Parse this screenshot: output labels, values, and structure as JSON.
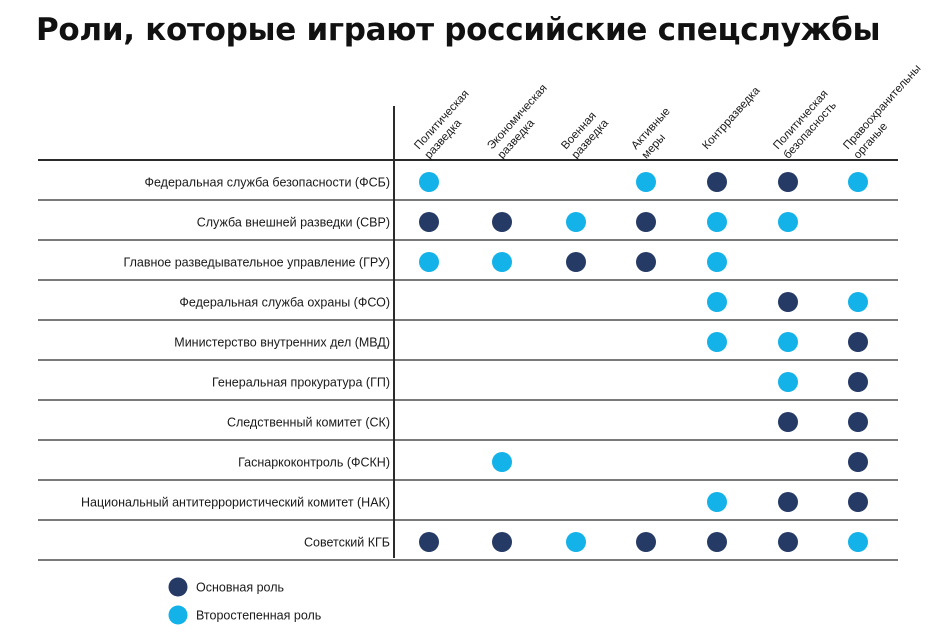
{
  "title": "Роли, которые играют российские спецслужбы",
  "colors": {
    "primary": "#263a66",
    "secondary": "#13b2e8",
    "line": "#2b2b2b"
  },
  "columns": [
    [
      "Политическая",
      "разведка"
    ],
    [
      "Экономическая",
      "разведка"
    ],
    [
      "Военная",
      "разведка"
    ],
    [
      "Активные",
      "меры"
    ],
    [
      "Контрразведка"
    ],
    [
      "Политическая",
      "безопасность"
    ],
    [
      "Правоохранительны",
      "органые"
    ]
  ],
  "rows": [
    {
      "label": "Федеральная служба безопасности (ФСБ)",
      "roles": [
        "secondary",
        null,
        null,
        "secondary",
        "primary",
        "primary",
        "secondary"
      ]
    },
    {
      "label": "Служба внешней разведки (СВР)",
      "roles": [
        "primary",
        "primary",
        "secondary",
        "primary",
        "secondary",
        "secondary",
        null
      ]
    },
    {
      "label": "Главное разведывательное управление (ГРУ)",
      "roles": [
        "secondary",
        "secondary",
        "primary",
        "primary",
        "secondary",
        null,
        null
      ]
    },
    {
      "label": "Федеральная служба охраны (ФСО)",
      "roles": [
        null,
        null,
        null,
        null,
        "secondary",
        "primary",
        "secondary"
      ]
    },
    {
      "label": "Министерство внутренних дел (МВД)",
      "roles": [
        null,
        null,
        null,
        null,
        "secondary",
        "secondary",
        "primary"
      ]
    },
    {
      "label": "Генеральная прокуратура (ГП)",
      "roles": [
        null,
        null,
        null,
        null,
        null,
        "secondary",
        "primary"
      ]
    },
    {
      "label": "Следственный комитет (СК)",
      "roles": [
        null,
        null,
        null,
        null,
        null,
        "primary",
        "primary"
      ]
    },
    {
      "label": "Гаснаркоконтроль (ФСКН)",
      "roles": [
        null,
        "secondary",
        null,
        null,
        null,
        null,
        "primary"
      ]
    },
    {
      "label": "Национальный антитеррористический комитет (НАК)",
      "roles": [
        null,
        null,
        null,
        null,
        "secondary",
        "primary",
        "primary"
      ]
    },
    {
      "label": "Советский КГБ",
      "roles": [
        "primary",
        "primary",
        "secondary",
        "primary",
        "primary",
        "primary",
        "secondary"
      ]
    }
  ],
  "legend": [
    {
      "role": "primary",
      "label": "Основная роль"
    },
    {
      "role": "secondary",
      "label": "Второстепенная роль"
    }
  ]
}
